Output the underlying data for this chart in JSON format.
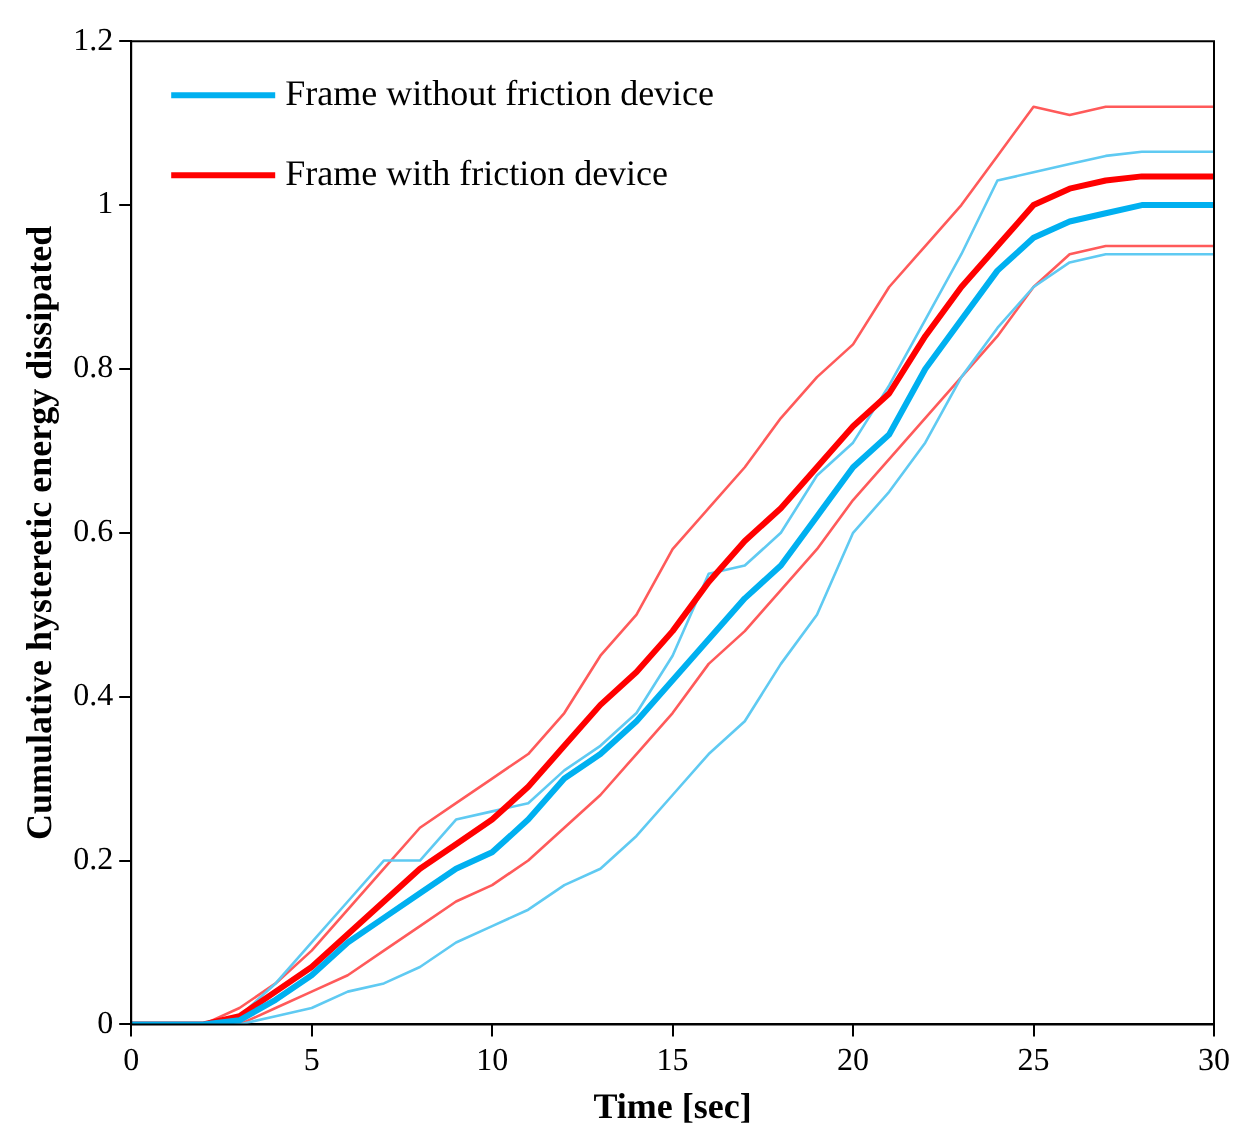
{
  "chart_data": {
    "type": "line",
    "xlabel": "Time [sec]",
    "ylabel": "Cumulative hysteretic energy dissipated",
    "x": [
      0,
      1,
      2,
      3,
      4,
      5,
      6,
      7,
      8,
      9,
      10,
      11,
      12,
      13,
      14,
      15,
      16,
      17,
      18,
      19,
      20,
      21,
      22,
      23,
      24,
      25,
      26,
      27,
      28,
      29,
      30
    ],
    "series": [
      {
        "color": "#5fcaf2",
        "values": [
          0,
          0,
          0,
          0.01,
          0.05,
          0.1,
          0.15,
          0.2,
          0.2,
          0.25,
          0.26,
          0.27,
          0.31,
          0.34,
          0.38,
          0.45,
          0.55,
          0.56,
          0.6,
          0.67,
          0.71,
          0.78,
          0.86,
          0.94,
          1.03,
          1.04,
          1.05,
          1.06,
          1.065,
          1.065,
          1.065
        ]
      },
      {
        "color": "#5fcaf2",
        "values": [
          0,
          0,
          0,
          0,
          0.01,
          0.02,
          0.04,
          0.05,
          0.07,
          0.1,
          0.12,
          0.14,
          0.17,
          0.19,
          0.23,
          0.28,
          0.33,
          0.37,
          0.44,
          0.5,
          0.6,
          0.65,
          0.71,
          0.79,
          0.85,
          0.9,
          0.93,
          0.94,
          0.94,
          0.94,
          0.94
        ]
      },
      {
        "color": "#ff5a5a",
        "values": [
          0,
          0,
          0,
          0.02,
          0.05,
          0.09,
          0.14,
          0.19,
          0.24,
          0.27,
          0.3,
          0.33,
          0.38,
          0.45,
          0.5,
          0.58,
          0.63,
          0.68,
          0.74,
          0.79,
          0.83,
          0.9,
          0.95,
          1.0,
          1.06,
          1.12,
          1.11,
          1.12,
          1.12,
          1.12,
          1.12
        ]
      },
      {
        "color": "#ff5a5a",
        "values": [
          0,
          0,
          0,
          0,
          0.02,
          0.04,
          0.06,
          0.09,
          0.12,
          0.15,
          0.17,
          0.2,
          0.24,
          0.28,
          0.33,
          0.38,
          0.44,
          0.48,
          0.53,
          0.58,
          0.64,
          0.69,
          0.74,
          0.79,
          0.84,
          0.9,
          0.94,
          0.95,
          0.95,
          0.95,
          0.95
        ]
      },
      {
        "name": "Frame without friction device",
        "color": "#00b0f0",
        "values": [
          0,
          0,
          0,
          0.005,
          0.03,
          0.06,
          0.1,
          0.13,
          0.16,
          0.19,
          0.21,
          0.25,
          0.3,
          0.33,
          0.37,
          0.42,
          0.47,
          0.52,
          0.56,
          0.62,
          0.68,
          0.72,
          0.8,
          0.86,
          0.92,
          0.96,
          0.98,
          0.99,
          1.0,
          1.0,
          1.0
        ]
      },
      {
        "name": "Frame with friction device",
        "color": "#ff0000",
        "values": [
          0,
          0,
          0,
          0.01,
          0.04,
          0.07,
          0.11,
          0.15,
          0.19,
          0.22,
          0.25,
          0.29,
          0.34,
          0.39,
          0.43,
          0.48,
          0.54,
          0.59,
          0.63,
          0.68,
          0.73,
          0.77,
          0.84,
          0.9,
          0.95,
          1.0,
          1.02,
          1.03,
          1.035,
          1.035,
          1.035
        ]
      }
    ],
    "xlim": [
      0,
      30
    ],
    "xticks": [
      0,
      5,
      10,
      15,
      20,
      25,
      30
    ],
    "ylim": [
      0,
      1.2
    ],
    "yticks": [
      0,
      0.2,
      0.4,
      0.6,
      0.8,
      1,
      1.2
    ],
    "grid": false,
    "legend": "top left",
    "marker": "none",
    "line_style": "solid"
  }
}
